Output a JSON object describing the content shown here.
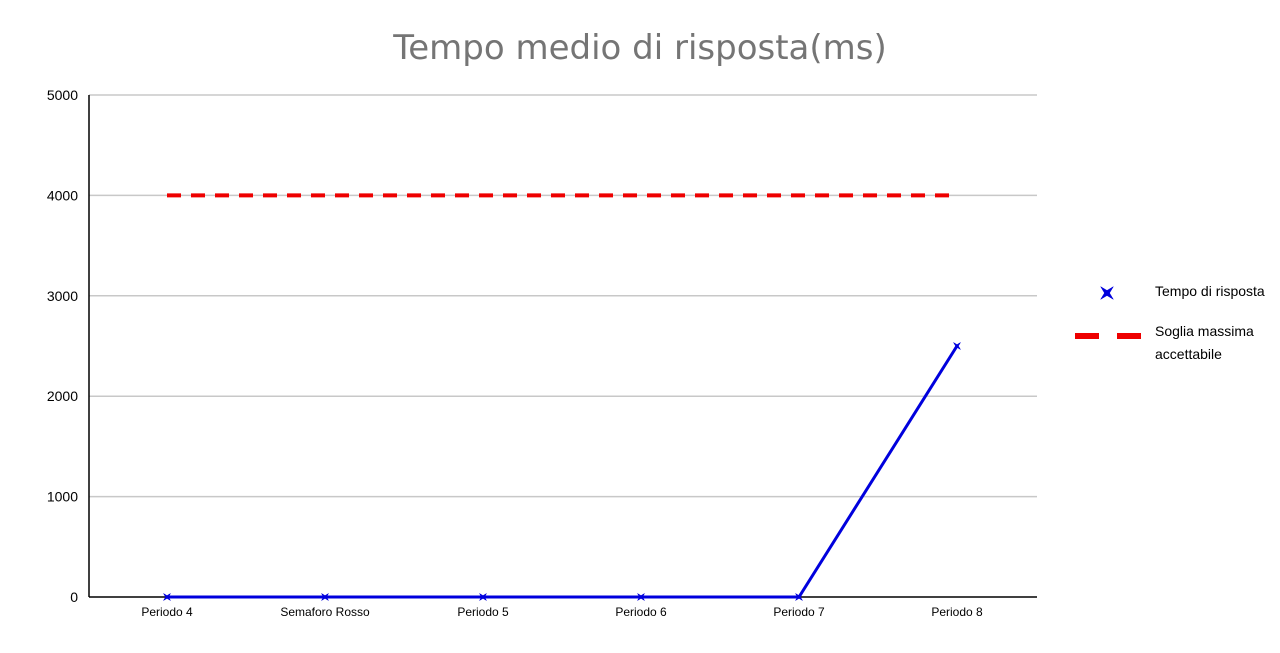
{
  "chart_data": {
    "type": "line",
    "title": "Tempo medio di risposta(ms)",
    "xlabel": "",
    "ylabel": "",
    "categories": [
      "Periodo 4",
      "Semaforo Rosso",
      "Periodo 5",
      "Periodo 6",
      "Periodo 7",
      "Periodo 8"
    ],
    "ylim": [
      0,
      5000
    ],
    "yticks": [
      0,
      1000,
      2000,
      3000,
      4000,
      5000
    ],
    "grid": true,
    "legend_position": "right",
    "series": [
      {
        "name": "Tempo di risposta",
        "values": [
          0,
          0,
          0,
          0,
          0,
          2500
        ],
        "color": "#0000dd",
        "line_style": "solid",
        "marker": "x"
      },
      {
        "name": "Soglia massima accettabile",
        "legend_lines": [
          "Soglia massima",
          "accettabile"
        ],
        "values": [
          4000,
          4000,
          4000,
          4000,
          4000,
          4000
        ],
        "color": "#ee0000",
        "line_style": "dashed",
        "marker": "none"
      }
    ]
  }
}
